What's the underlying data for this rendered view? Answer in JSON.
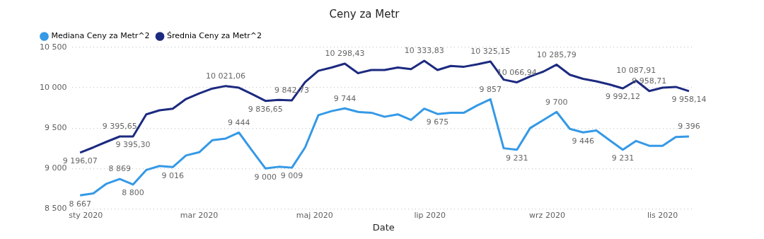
{
  "chart_data": {
    "type": "line",
    "title": "Ceny za Metr",
    "xlabel": "Date",
    "x": [
      "2019-12-29",
      "2020-01-05",
      "2020-01-12",
      "2020-01-19",
      "2020-01-26",
      "2020-02-02",
      "2020-02-09",
      "2020-02-16",
      "2020-02-23",
      "2020-03-01",
      "2020-03-08",
      "2020-03-15",
      "2020-03-22",
      "2020-03-29",
      "2020-04-05",
      "2020-04-12",
      "2020-04-19",
      "2020-04-26",
      "2020-05-03",
      "2020-05-10",
      "2020-05-17",
      "2020-05-24",
      "2020-05-31",
      "2020-06-07",
      "2020-06-14",
      "2020-06-21",
      "2020-06-28",
      "2020-07-05",
      "2020-07-12",
      "2020-07-19",
      "2020-07-26",
      "2020-08-02",
      "2020-08-09",
      "2020-08-16",
      "2020-08-23",
      "2020-08-30",
      "2020-09-06",
      "2020-09-13",
      "2020-09-20",
      "2020-09-27",
      "2020-10-04",
      "2020-10-11",
      "2020-10-18",
      "2020-10-25",
      "2020-11-01",
      "2020-11-08",
      "2020-11-15"
    ],
    "series": [
      {
        "name": "Mediana Ceny za Metr^2",
        "color": "#3599e6",
        "values": [
          8667,
          8690,
          8810,
          8869,
          8800,
          8980,
          9030,
          9016,
          9160,
          9200,
          9350,
          9370,
          9444,
          9220,
          9000,
          9020,
          9009,
          9260,
          9660,
          9710,
          9744,
          9700,
          9690,
          9640,
          9670,
          9600,
          9740,
          9675,
          9690,
          9690,
          9780,
          9857,
          9250,
          9231,
          9500,
          9600,
          9700,
          9490,
          9446,
          9470,
          9350,
          9231,
          9340,
          9280,
          9280,
          9390,
          9396
        ],
        "value_labels": [
          "8 667",
          null,
          null,
          "8 869",
          "8 800",
          null,
          null,
          "9 016",
          null,
          null,
          null,
          null,
          "9 444",
          null,
          "9 000",
          null,
          "9 009",
          null,
          null,
          null,
          "9 744",
          null,
          null,
          null,
          null,
          null,
          null,
          "9 675",
          null,
          null,
          null,
          "9 857",
          null,
          "9 231",
          null,
          null,
          "9 700",
          null,
          "9 446",
          null,
          null,
          "9 231",
          null,
          null,
          null,
          null,
          "9 396"
        ]
      },
      {
        "name": "Średnia Ceny za Metr^2",
        "color": "#1c2a80",
        "values": [
          9196.07,
          9260,
          9330,
          9395.65,
          9395.3,
          9670,
          9720,
          9740,
          9860,
          9930,
          9990,
          10021.06,
          10000,
          9920,
          9836.65,
          9850,
          9842.73,
          10070,
          10210,
          10250,
          10298.43,
          10180,
          10220,
          10220,
          10250,
          10230,
          10333.83,
          10220,
          10270,
          10260,
          10290,
          10325.15,
          10100,
          10066.94,
          10140,
          10200,
          10285.79,
          10160,
          10110,
          10080,
          10040,
          9992.12,
          10087.91,
          9958.71,
          10000,
          10010,
          9958.14
        ],
        "value_labels": [
          "9 196,07",
          null,
          null,
          "9 395,65",
          "9 395,30",
          null,
          null,
          null,
          null,
          null,
          null,
          "10 021,06",
          null,
          null,
          "9 836,65",
          null,
          "9 842,73",
          null,
          null,
          null,
          "10 298,43",
          null,
          null,
          null,
          null,
          null,
          "10 333,83",
          null,
          null,
          null,
          null,
          "10 325,15",
          null,
          "10 066,94",
          null,
          null,
          "10 285,79",
          null,
          null,
          null,
          null,
          "9 992,12",
          "10 087,91",
          "9 958,71",
          null,
          null,
          "9 958,14"
        ]
      }
    ],
    "xlim": [
      "2019-12-25",
      "2020-11-18"
    ],
    "xticks": [
      {
        "value": "2020-01-01",
        "label": "sty 2020"
      },
      {
        "value": "2020-03-01",
        "label": "mar 2020"
      },
      {
        "value": "2020-05-01",
        "label": "maj 2020"
      },
      {
        "value": "2020-07-01",
        "label": "lip 2020"
      },
      {
        "value": "2020-09-01",
        "label": "wrz 2020"
      },
      {
        "value": "2020-11-01",
        "label": "lis 2020"
      }
    ],
    "ylim": [
      8500,
      10500
    ],
    "yticks": [
      {
        "value": 8500,
        "label": "8 500"
      },
      {
        "value": 9000,
        "label": "9 000"
      },
      {
        "value": 9500,
        "label": "9 500"
      },
      {
        "value": 10000,
        "label": "10 000"
      },
      {
        "value": 10500,
        "label": "10 500"
      }
    ],
    "grid": "y",
    "legend": "top left",
    "marker": "none",
    "line_style": "solid"
  }
}
